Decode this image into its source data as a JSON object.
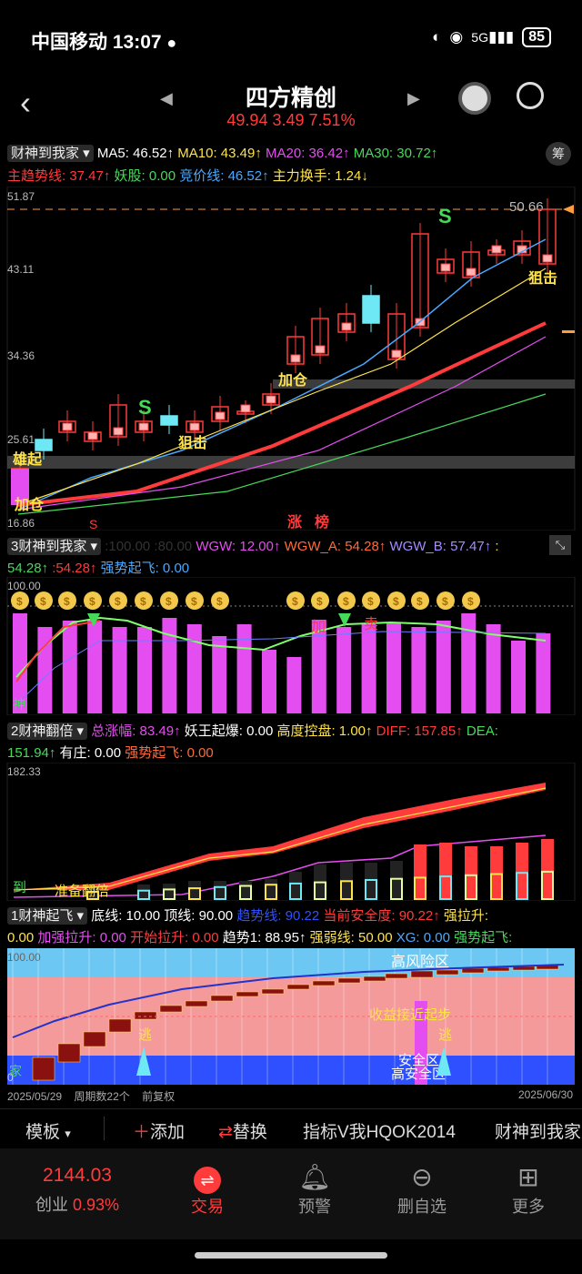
{
  "status_bar": {
    "carrier": "中国移动",
    "time": "13:07",
    "network": "5G",
    "battery": "85"
  },
  "header": {
    "title": "四方精创",
    "price": "49.94",
    "change": "3.49",
    "change_pct": "7.51%"
  },
  "colors": {
    "up": "#ff3b3b",
    "down": "#2ecc71",
    "accent": "#ff3b3b",
    "purple": "#e44ef0"
  },
  "main_chart": {
    "indicator": "财神到我家",
    "ma_line": [
      {
        "label": "MA5: 46.52↑",
        "color": "#ffffff"
      },
      {
        "label": "MA10: 43.49↑",
        "color": "#ffe34a"
      },
      {
        "label": "MA20: 36.42↑",
        "color": "#e44ef0"
      },
      {
        "label": "MA30: 30.72↑",
        "color": "#47d95a"
      }
    ],
    "sub_line": [
      {
        "label": "主趋势线: 37.47↑",
        "color": "#ff3b3b"
      },
      {
        "label": "妖股: 0.00",
        "color": "#47d95a"
      },
      {
        "label": "竞价线: 46.52↑",
        "color": "#4aa8ff"
      },
      {
        "label": "主力换手: 1.24↓",
        "color": "#ffe34a"
      }
    ],
    "chip_button": "筹",
    "y_ticks": [
      "51.87",
      "43.11",
      "34.36",
      "25.61",
      "16.86"
    ],
    "last_price_label": "50.66",
    "annotations": [
      "雄起",
      "加仓",
      "狙击",
      "加仓",
      "狙击",
      "S",
      "S",
      "涨",
      "榜"
    ]
  },
  "panel3": {
    "indicator": "3财神到我家",
    "values_line1": ":100.00 :80.00",
    "legend": [
      {
        "label": "WGW: 12.00↑",
        "color": "#e44ef0"
      },
      {
        "label": "WGW_A: 54.28↑",
        "color": "#ff6a3b"
      },
      {
        "label": "WGW_B: 57.47↑",
        "color": "#a58cff"
      },
      {
        "label": ":",
        "color": "#ffe34a"
      }
    ],
    "legend2": [
      {
        "label": "54.28↑",
        "color": "#47d95a"
      },
      {
        "label": ":54.28↑",
        "color": "#ff3b3b"
      },
      {
        "label": "强势起飞: 0.00",
        "color": "#4aa8ff"
      }
    ],
    "y_top": "100.00",
    "marks": [
      "加",
      "卖",
      "神"
    ]
  },
  "panel2": {
    "indicator": "2财神翻倍",
    "legend": [
      {
        "label": "总涨幅: 83.49↑",
        "color": "#e44ef0"
      },
      {
        "label": "妖王起爆: 0.00",
        "color": "#ffffff"
      },
      {
        "label": "高度控盘: 1.00↑",
        "color": "#ffe34a"
      },
      {
        "label": "DIFF: 157.85↑",
        "color": "#ff3b3b"
      },
      {
        "label": "DEA:",
        "color": "#47d95a"
      }
    ],
    "legend2": [
      {
        "label": "151.94↑",
        "color": "#47d95a"
      },
      {
        "label": "有庄: 0.00",
        "color": "#ffffff"
      },
      {
        "label": "强势起飞: 0.00",
        "color": "#ff6a3b"
      }
    ],
    "y_top": "182.33",
    "marks": [
      "到",
      "准备翻倍"
    ]
  },
  "panel1": {
    "indicator": "1财神起飞",
    "legend": [
      {
        "label": "底线: 10.00",
        "color": "#ffffff"
      },
      {
        "label": "顶线: 90.00",
        "color": "#ffffff"
      },
      {
        "label": "趋势线: 90.22",
        "color": "#2e50ff"
      },
      {
        "label": "当前安全度: 90.22↑",
        "color": "#ff3b3b"
      },
      {
        "label": "强拉升:",
        "color": "#ffe34a"
      }
    ],
    "legend2": [
      {
        "label": "0.00",
        "color": "#ffe34a"
      },
      {
        "label": "加强拉升: 0.00",
        "color": "#e44ef0"
      },
      {
        "label": "开始拉升: 0.00",
        "color": "#ff3b3b"
      },
      {
        "label": "趋势1: 88.95↑",
        "color": "#ffffff"
      },
      {
        "label": "强弱线: 50.00",
        "color": "#ffe34a"
      },
      {
        "label": "XG: 0.00",
        "color": "#4aa8ff"
      },
      {
        "label": "强势起飞:",
        "color": "#47d95a"
      }
    ],
    "y_top": "100.00",
    "y_bottom": "0",
    "zone_labels": [
      "高风险区",
      "收益接近起步",
      "安全区",
      "高安全区",
      "逃",
      "逃",
      "家"
    ]
  },
  "date_row": {
    "start": "2025/05/29",
    "period": "周期数22个",
    "adjust": "前复权",
    "end": "2025/06/30"
  },
  "toolbar": {
    "template": "模板",
    "add": "添加",
    "replace": "替换",
    "indicator_a": "指标V我HQOK2014",
    "indicator_b": "财神到我家"
  },
  "index": {
    "value": "2144.03",
    "name": "创业",
    "pct": "0.93%"
  },
  "tabs": [
    {
      "label": "交易",
      "icon": "trade-icon"
    },
    {
      "label": "预警",
      "icon": "bell-icon"
    },
    {
      "label": "删自选",
      "icon": "minus-circle-icon"
    },
    {
      "label": "更多",
      "icon": "grid-icon"
    }
  ]
}
